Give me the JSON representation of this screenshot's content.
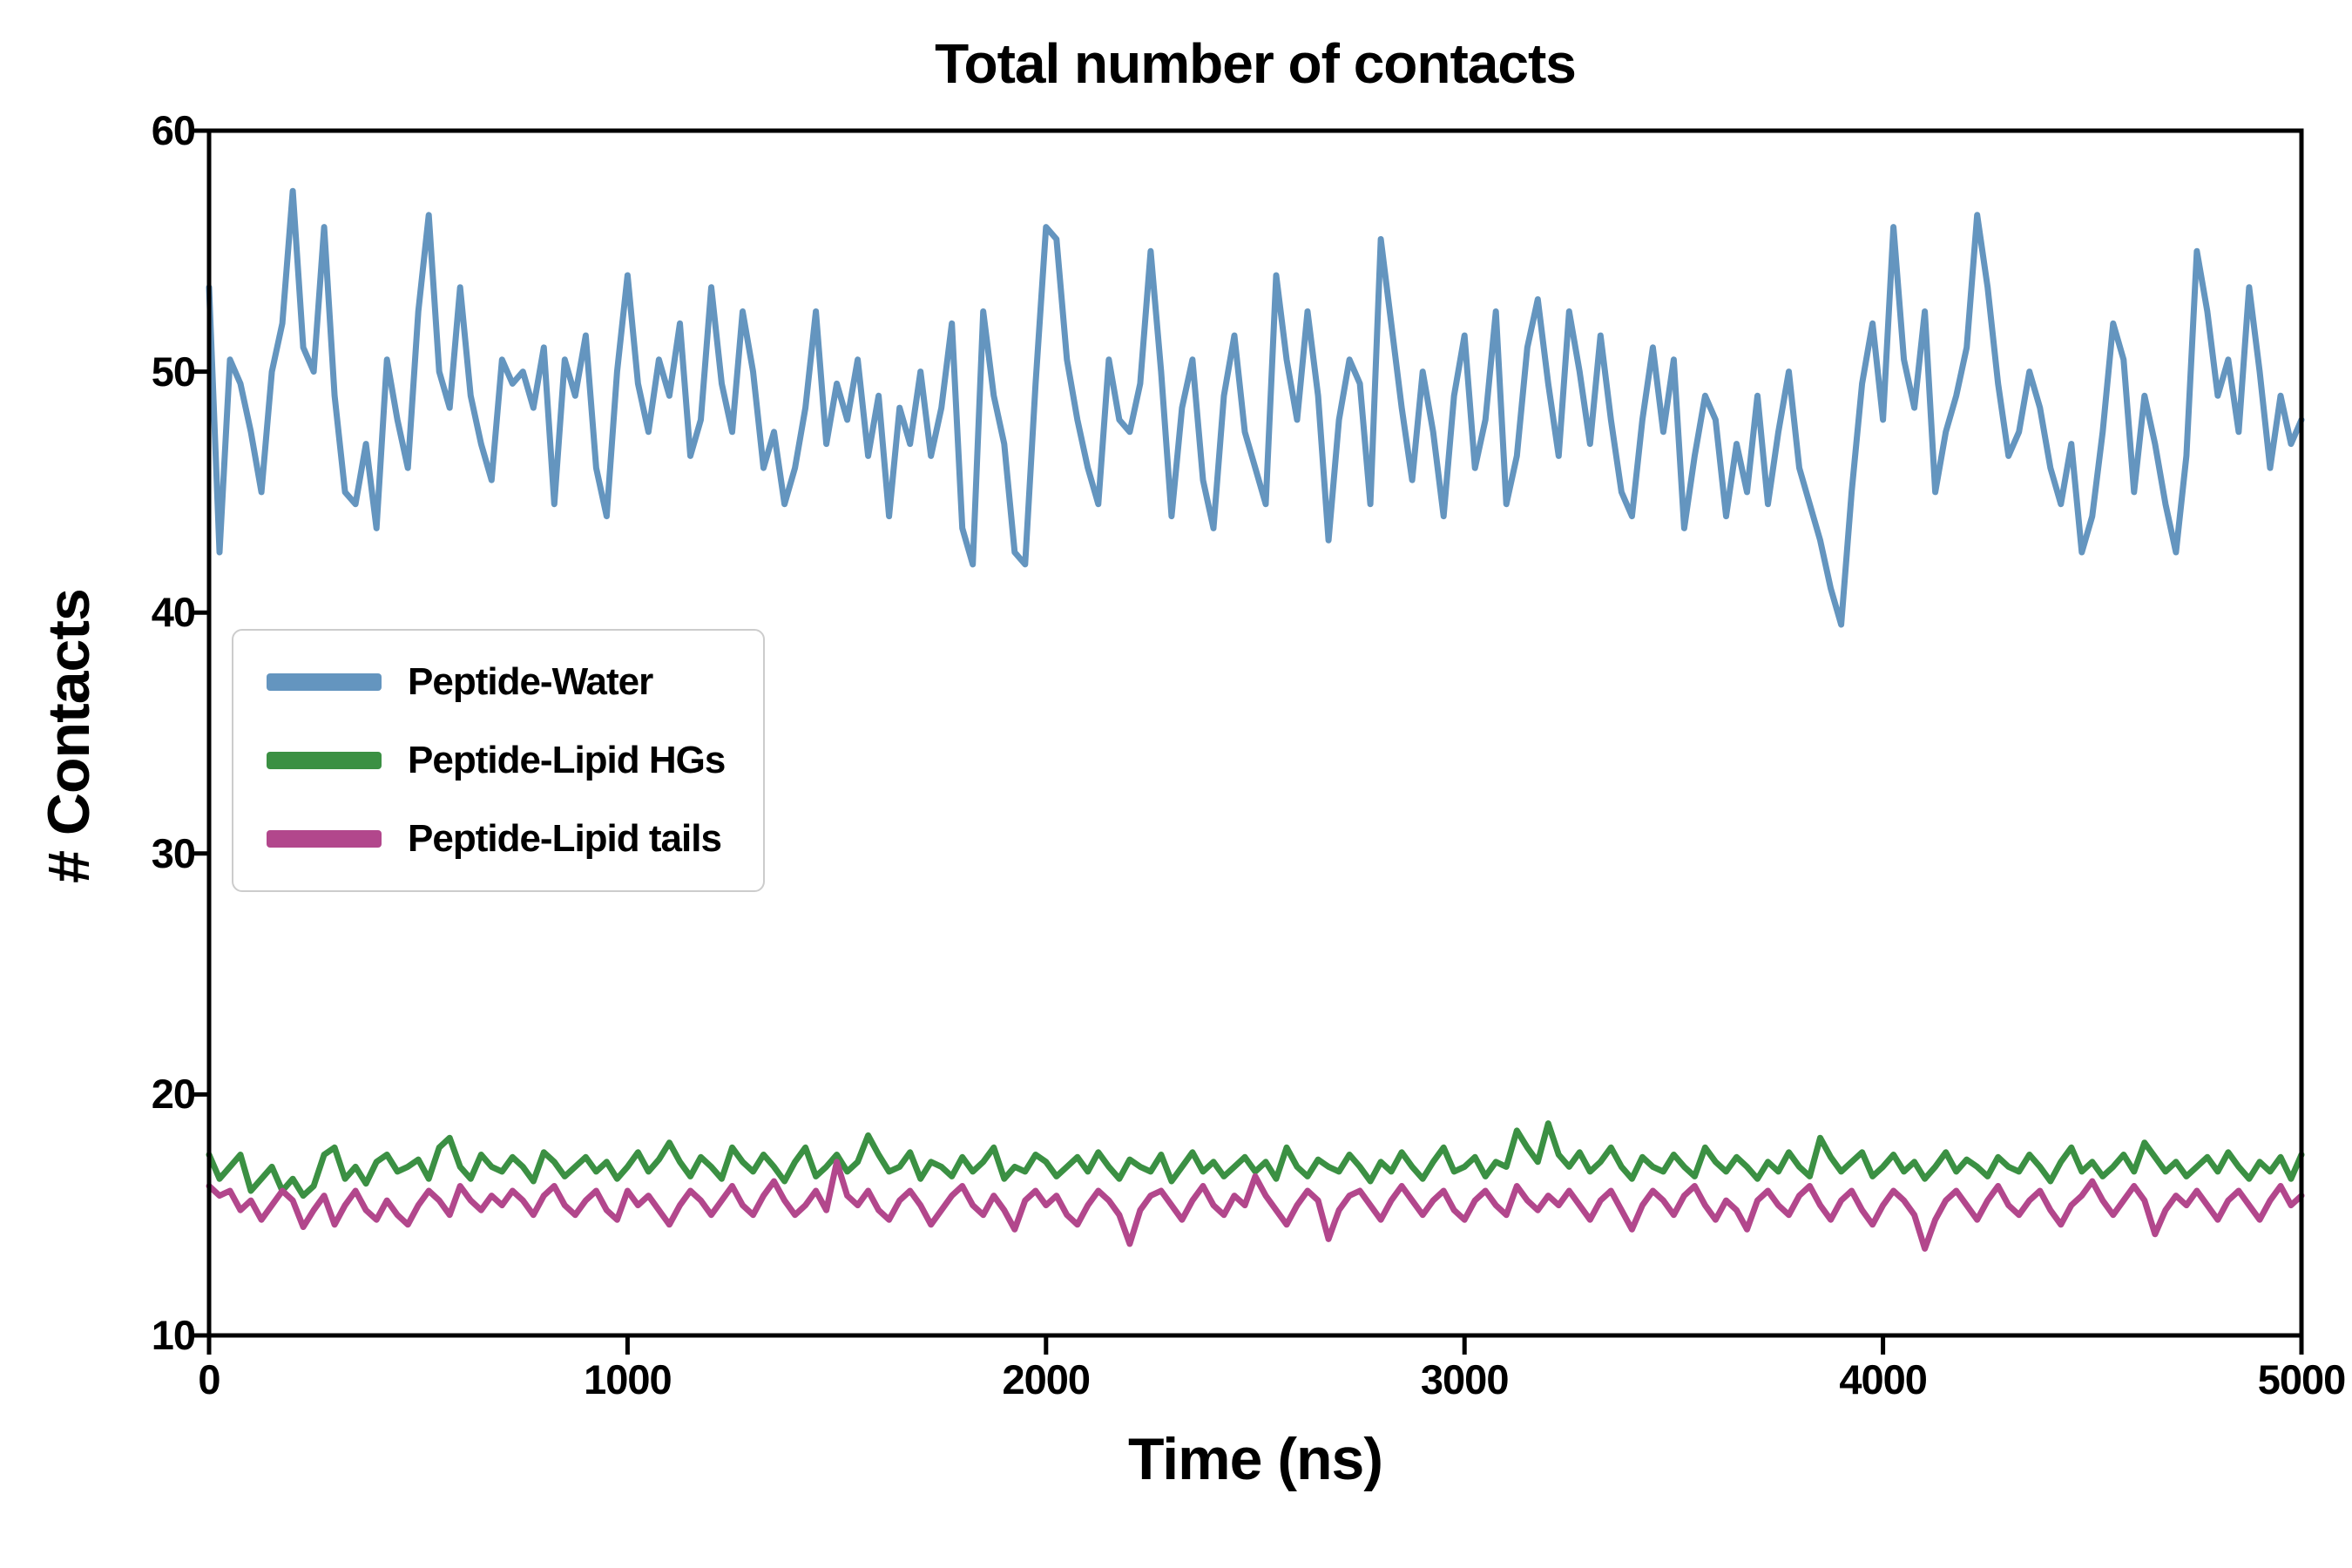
{
  "title": "Total number of contacts",
  "chart_data": {
    "type": "line",
    "title": "Total number of contacts",
    "xlabel": "Time (ns)",
    "ylabel": "# Contacts",
    "xlim": [
      0,
      5000
    ],
    "ylim": [
      10,
      60
    ],
    "x_ticks": [
      0,
      1000,
      2000,
      3000,
      4000,
      5000
    ],
    "y_ticks": [
      10,
      20,
      30,
      40,
      50,
      60
    ],
    "grid": false,
    "legend_position": "upper-left-inside",
    "x_start": 0,
    "x_step": 25,
    "series": [
      {
        "name": "Peptide-Water",
        "color": "#6495bf",
        "values": [
          53.5,
          42.5,
          50.5,
          49.5,
          47.5,
          45.0,
          50.0,
          52.0,
          57.5,
          51.0,
          50.0,
          56.0,
          49.0,
          45.0,
          44.5,
          47.0,
          43.5,
          50.5,
          48.0,
          46.0,
          52.5,
          56.5,
          50.0,
          48.5,
          53.5,
          49.0,
          47.0,
          45.5,
          50.5,
          49.5,
          50.0,
          48.5,
          51.0,
          44.5,
          50.5,
          49.0,
          51.5,
          46.0,
          44.0,
          50.0,
          54.0,
          49.5,
          47.5,
          50.5,
          49.0,
          52.0,
          46.5,
          48.0,
          53.5,
          49.5,
          47.5,
          52.5,
          50.0,
          46.0,
          47.5,
          44.5,
          46.0,
          48.5,
          52.5,
          47.0,
          49.5,
          48.0,
          50.5,
          46.5,
          49.0,
          44.0,
          48.5,
          47.0,
          50.0,
          46.5,
          48.5,
          52.0,
          43.5,
          42.0,
          52.5,
          49.0,
          47.0,
          42.5,
          42.0,
          49.5,
          56.0,
          55.5,
          50.5,
          48.0,
          46.0,
          44.5,
          50.5,
          48.0,
          47.5,
          49.5,
          55.0,
          50.0,
          44.0,
          48.5,
          50.5,
          45.5,
          43.5,
          49.0,
          51.5,
          47.5,
          46.0,
          44.5,
          54.0,
          50.5,
          48.0,
          52.5,
          49.0,
          43.0,
          48.0,
          50.5,
          49.5,
          44.5,
          55.5,
          52.0,
          48.5,
          45.5,
          50.0,
          47.5,
          44.0,
          49.0,
          51.5,
          46.0,
          48.0,
          52.5,
          44.5,
          46.5,
          51.0,
          53.0,
          49.5,
          46.5,
          52.5,
          50.0,
          47.0,
          51.5,
          48.0,
          45.0,
          44.0,
          48.0,
          51.0,
          47.5,
          50.5,
          43.5,
          46.5,
          49.0,
          48.0,
          44.0,
          47.0,
          45.0,
          49.0,
          44.5,
          47.5,
          50.0,
          46.0,
          44.5,
          43.0,
          41.0,
          39.5,
          45.0,
          49.5,
          52.0,
          48.0,
          56.0,
          50.5,
          48.5,
          52.5,
          45.0,
          47.5,
          49.0,
          51.0,
          56.5,
          53.5,
          49.5,
          46.5,
          47.5,
          50.0,
          48.5,
          46.0,
          44.5,
          47.0,
          42.5,
          44.0,
          47.5,
          52.0,
          50.5,
          45.0,
          49.0,
          47.0,
          44.5,
          42.5,
          46.5,
          55.0,
          52.5,
          49.0,
          50.5,
          47.5,
          53.5,
          50.0,
          46.0,
          49.0,
          47.0,
          48.0
        ]
      },
      {
        "name": "Peptide-Lipid HGs",
        "color": "#3b9043",
        "values": [
          17.5,
          16.5,
          17.0,
          17.5,
          16.0,
          16.5,
          17.0,
          16.0,
          16.5,
          15.8,
          16.2,
          17.5,
          17.8,
          16.5,
          17.0,
          16.3,
          17.2,
          17.5,
          16.8,
          17.0,
          17.3,
          16.5,
          17.8,
          18.2,
          17.0,
          16.5,
          17.5,
          17.0,
          16.8,
          17.4,
          17.0,
          16.4,
          17.6,
          17.2,
          16.6,
          17.0,
          17.4,
          16.8,
          17.2,
          16.5,
          17.0,
          17.6,
          16.8,
          17.3,
          18.0,
          17.2,
          16.6,
          17.4,
          17.0,
          16.5,
          17.8,
          17.2,
          16.8,
          17.5,
          17.0,
          16.4,
          17.2,
          17.8,
          16.6,
          17.0,
          17.5,
          16.8,
          17.2,
          18.3,
          17.5,
          16.8,
          17.0,
          17.6,
          16.5,
          17.2,
          17.0,
          16.6,
          17.4,
          16.8,
          17.2,
          17.8,
          16.5,
          17.0,
          16.8,
          17.5,
          17.2,
          16.6,
          17.0,
          17.4,
          16.8,
          17.6,
          17.0,
          16.5,
          17.3,
          17.0,
          16.8,
          17.5,
          16.4,
          17.0,
          17.6,
          16.8,
          17.2,
          16.6,
          17.0,
          17.4,
          16.8,
          17.2,
          16.5,
          17.8,
          17.0,
          16.6,
          17.3,
          17.0,
          16.8,
          17.5,
          17.0,
          16.4,
          17.2,
          16.8,
          17.6,
          17.0,
          16.5,
          17.2,
          17.8,
          16.8,
          17.0,
          17.4,
          16.6,
          17.2,
          17.0,
          18.5,
          17.8,
          17.2,
          18.8,
          17.5,
          17.0,
          17.6,
          16.8,
          17.2,
          17.8,
          17.0,
          16.5,
          17.4,
          17.0,
          16.8,
          17.5,
          17.0,
          16.6,
          17.8,
          17.2,
          16.8,
          17.4,
          17.0,
          16.5,
          17.2,
          16.8,
          17.6,
          17.0,
          16.6,
          18.2,
          17.4,
          16.8,
          17.2,
          17.6,
          16.6,
          17.0,
          17.5,
          16.8,
          17.2,
          16.5,
          17.0,
          17.6,
          16.8,
          17.3,
          17.0,
          16.6,
          17.4,
          17.0,
          16.8,
          17.5,
          17.0,
          16.4,
          17.2,
          17.8,
          16.8,
          17.2,
          16.6,
          17.0,
          17.5,
          16.8,
          18.0,
          17.4,
          16.8,
          17.2,
          16.6,
          17.0,
          17.4,
          16.8,
          17.6,
          17.0,
          16.5,
          17.2,
          16.8,
          17.4,
          16.5,
          17.5
        ]
      },
      {
        "name": "Peptide-Lipid tails",
        "color": "#b2478c",
        "values": [
          16.2,
          15.8,
          16.0,
          15.2,
          15.6,
          14.8,
          15.4,
          16.0,
          15.6,
          14.5,
          15.2,
          15.8,
          14.6,
          15.4,
          16.0,
          15.2,
          14.8,
          15.6,
          15.0,
          14.6,
          15.4,
          16.0,
          15.6,
          15.0,
          16.2,
          15.6,
          15.2,
          15.8,
          15.4,
          16.0,
          15.6,
          15.0,
          15.8,
          16.2,
          15.4,
          15.0,
          15.6,
          16.0,
          15.2,
          14.8,
          16.0,
          15.4,
          15.8,
          15.2,
          14.6,
          15.4,
          16.0,
          15.6,
          15.0,
          15.6,
          16.2,
          15.4,
          15.0,
          15.8,
          16.4,
          15.6,
          15.0,
          15.4,
          16.0,
          15.2,
          17.2,
          15.8,
          15.4,
          16.0,
          15.2,
          14.8,
          15.6,
          16.0,
          15.4,
          14.6,
          15.2,
          15.8,
          16.2,
          15.4,
          15.0,
          15.8,
          15.2,
          14.4,
          15.6,
          16.0,
          15.4,
          15.8,
          15.0,
          14.6,
          15.4,
          16.0,
          15.6,
          15.0,
          13.8,
          15.2,
          15.8,
          16.0,
          15.4,
          14.8,
          15.6,
          16.2,
          15.4,
          15.0,
          15.8,
          15.4,
          16.6,
          15.8,
          15.2,
          14.6,
          15.4,
          16.0,
          15.6,
          14.0,
          15.2,
          15.8,
          16.0,
          15.4,
          14.8,
          15.6,
          16.2,
          15.6,
          15.0,
          15.6,
          16.0,
          15.2,
          14.8,
          15.6,
          16.0,
          15.4,
          15.0,
          16.2,
          15.6,
          15.2,
          15.8,
          15.4,
          16.0,
          15.4,
          14.8,
          15.6,
          16.0,
          15.2,
          14.4,
          15.4,
          16.0,
          15.6,
          15.0,
          15.8,
          16.2,
          15.4,
          14.8,
          15.6,
          15.2,
          14.4,
          15.6,
          16.0,
          15.4,
          15.0,
          15.8,
          16.2,
          15.4,
          14.8,
          15.6,
          16.0,
          15.2,
          14.6,
          15.4,
          16.0,
          15.6,
          15.0,
          13.6,
          14.8,
          15.6,
          16.0,
          15.4,
          14.8,
          15.6,
          16.2,
          15.4,
          15.0,
          15.6,
          16.0,
          15.2,
          14.6,
          15.4,
          15.8,
          16.4,
          15.6,
          15.0,
          15.6,
          16.2,
          15.6,
          14.2,
          15.2,
          15.8,
          15.4,
          16.0,
          15.4,
          14.8,
          15.6,
          16.0,
          15.4,
          14.8,
          15.6,
          16.2,
          15.4,
          15.8
        ]
      }
    ]
  }
}
